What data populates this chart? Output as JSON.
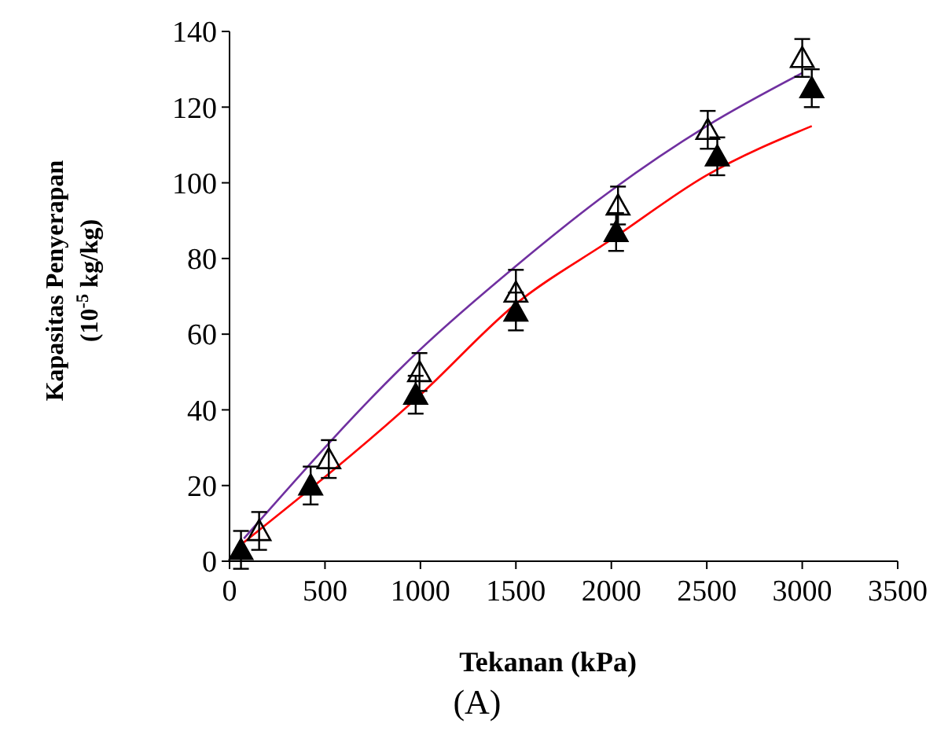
{
  "chart_data": {
    "type": "scatter",
    "xlabel": "Tekanan (kPa)",
    "ylabel": "Kapasitas Penyerapan\n(10$^{-5}$ kg/kg)",
    "annotations": [
      "(A)"
    ],
    "xlim": [
      0,
      3500
    ],
    "ylim": [
      0,
      140
    ],
    "xticks": [
      0,
      500,
      1000,
      1500,
      2000,
      2500,
      3000,
      3500
    ],
    "yticks": [
      0,
      20,
      40,
      60,
      80,
      100,
      120,
      140
    ],
    "grid": false,
    "series": [
      {
        "marker": "triangle",
        "color": "#000000",
        "x": [
          155,
          520,
          995,
          1500,
          2035,
          2505,
          3000
        ],
        "values": [
          8,
          27,
          50,
          71,
          94,
          114,
          133
        ],
        "errors": [
          5,
          5,
          5,
          6,
          5,
          5,
          5
        ]
      },
      {
        "marker": "triangle",
        "color": "#000000",
        "x": [
          60,
          425,
          975,
          1500,
          2025,
          2555,
          3050
        ],
        "values": [
          3,
          20,
          44,
          66,
          87,
          107,
          125
        ],
        "errors": [
          5,
          5,
          5,
          5,
          5,
          5,
          5
        ]
      },
      {
        "type": "line",
        "color": "#7030a0",
        "x": [
          75,
          1000,
          1500,
          2000,
          2500,
          3000
        ],
        "values": [
          6,
          56,
          78,
          98,
          115,
          129
        ]
      },
      {
        "type": "line",
        "color": "#ff0000",
        "x": [
          75,
          1000,
          1500,
          2000,
          2500,
          3050
        ],
        "values": [
          5,
          44,
          68,
          85,
          102,
          115
        ]
      }
    ]
  }
}
